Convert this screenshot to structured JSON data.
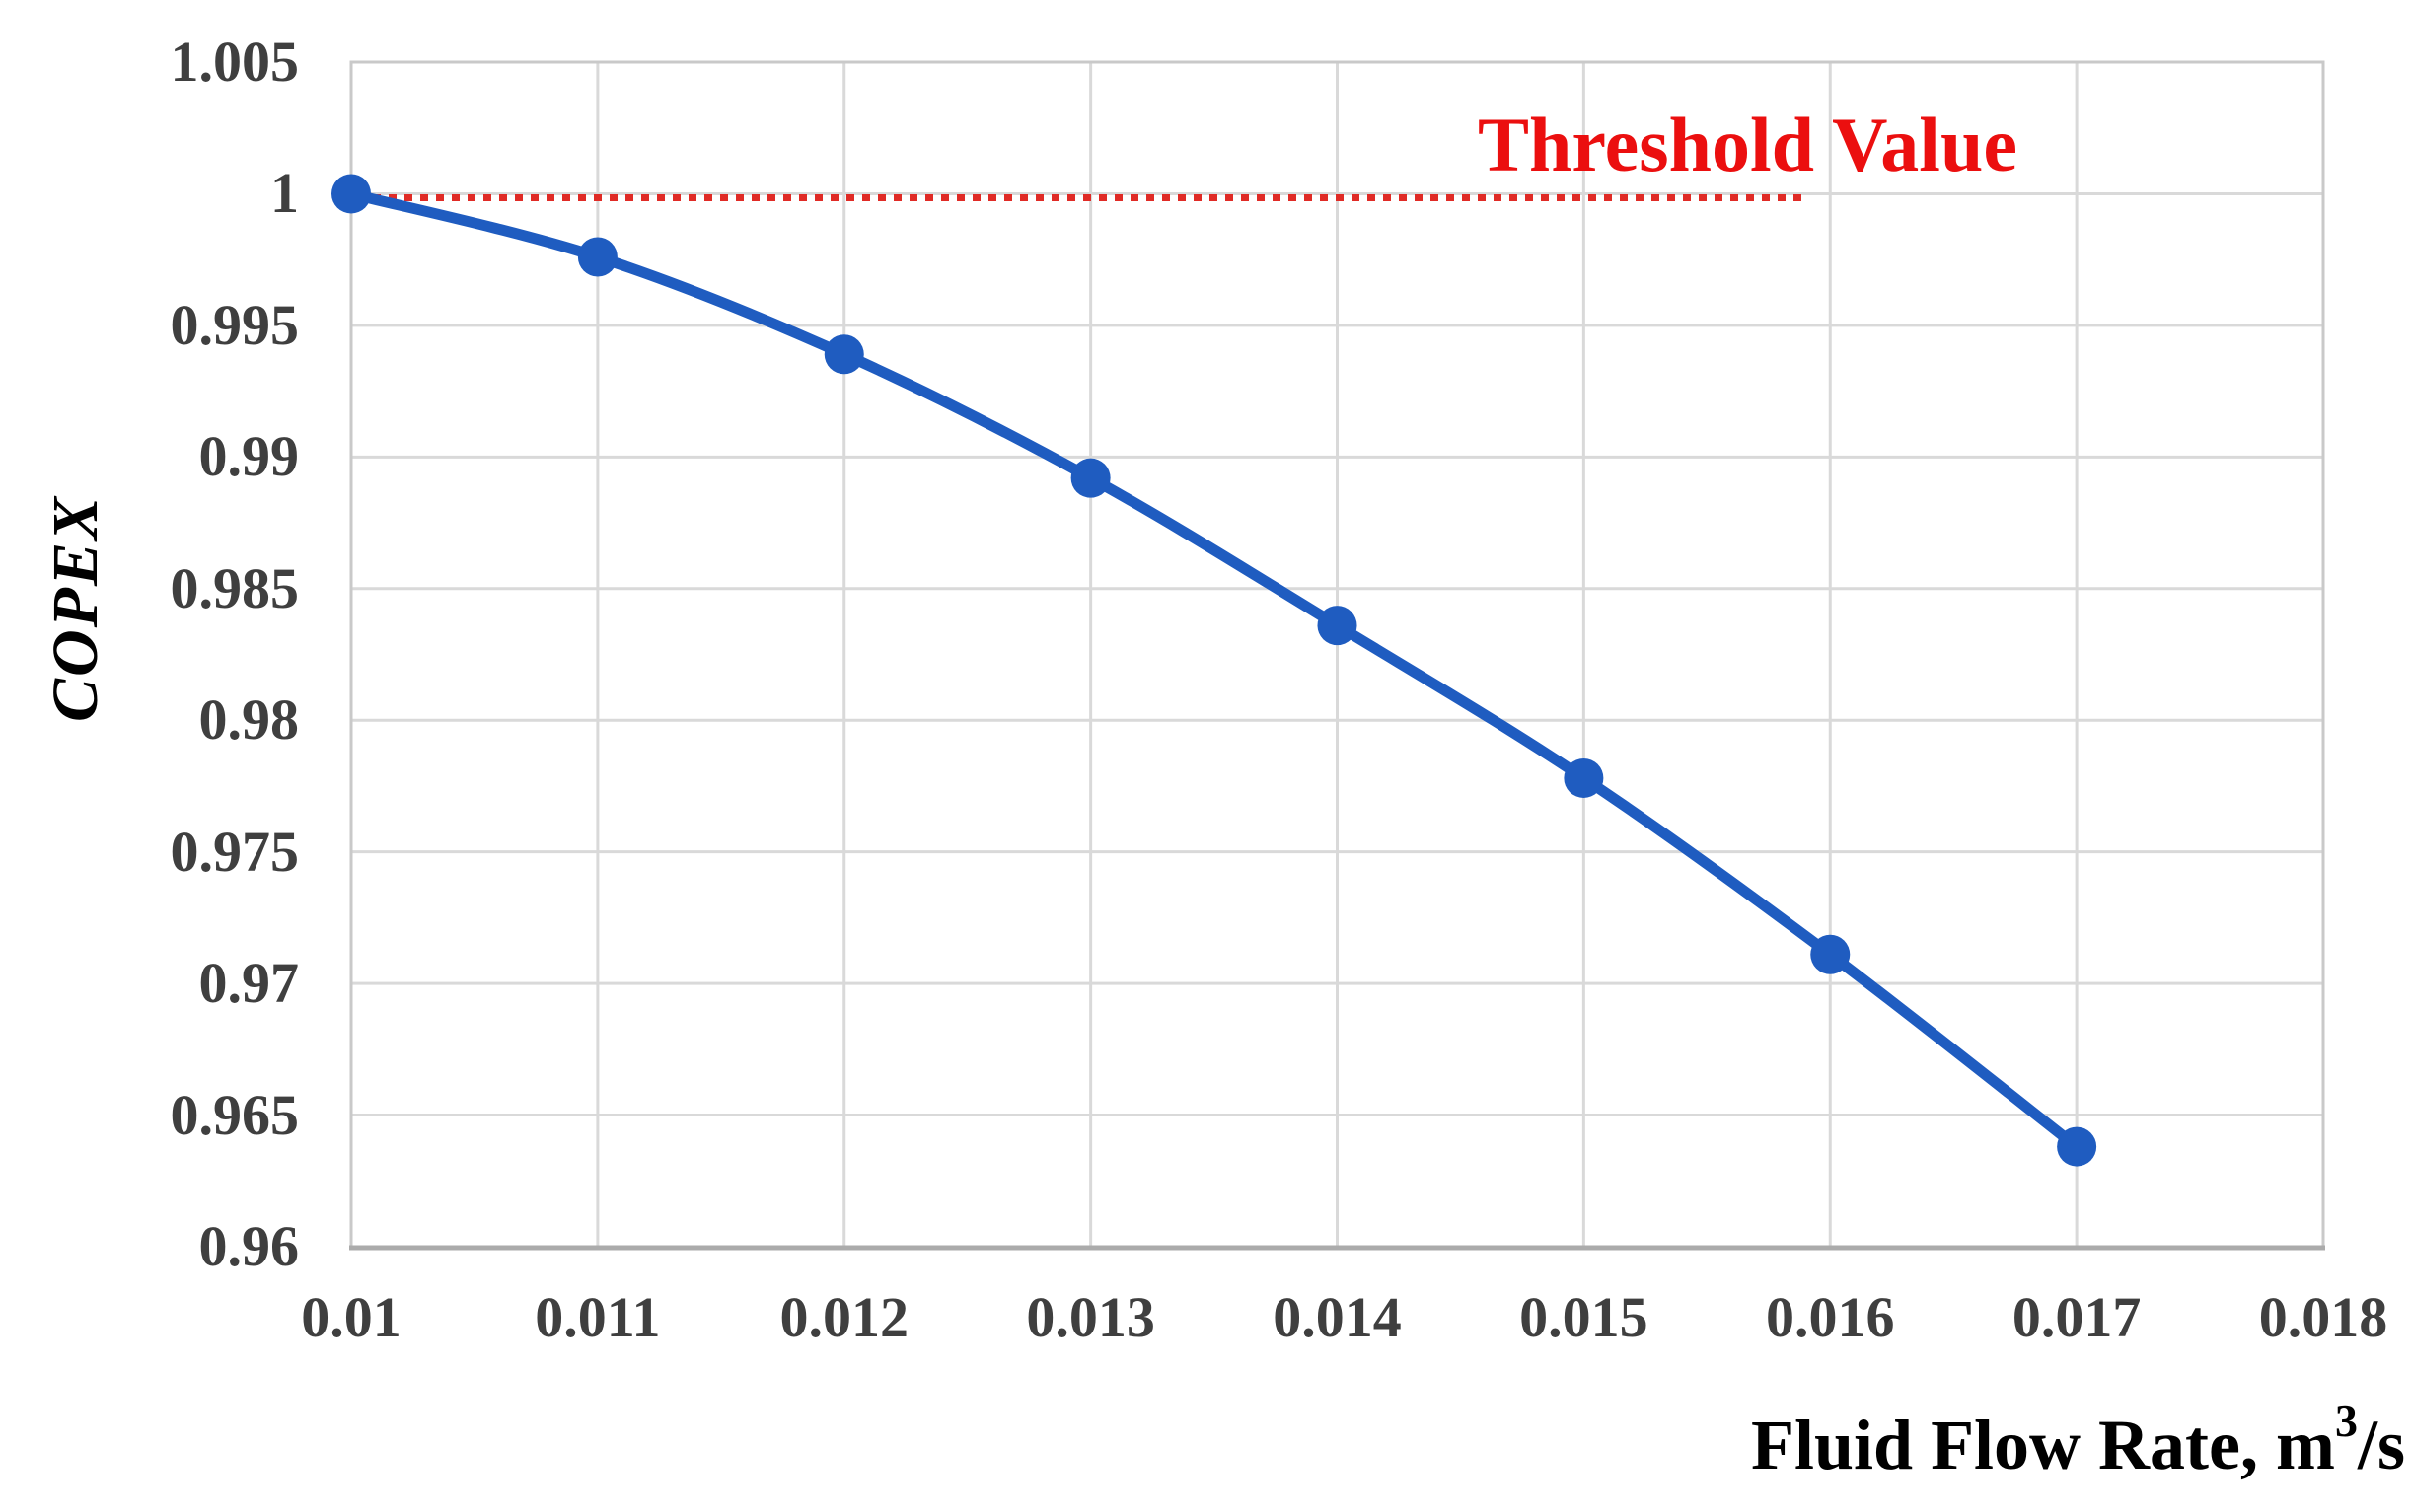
{
  "page": {
    "background": "#ffffff"
  },
  "chart_data": {
    "type": "line",
    "title": "",
    "xlabel": "Fluid Flow Rate, m³/s",
    "xlabel_parts": {
      "base": "Fluid Flow Rate, m",
      "sup": "3",
      "suffix": "/s"
    },
    "ylabel": "COPEX",
    "x": [
      0.01,
      0.011,
      0.012,
      0.013,
      0.014,
      0.015,
      0.016,
      0.017
    ],
    "series": [
      {
        "name": "COPEX",
        "values": [
          1.0,
          0.9976,
          0.9939,
          0.9892,
          0.9836,
          0.9778,
          0.9711,
          0.9638
        ],
        "color": "#1F5CC0",
        "marker": "circle",
        "smooth": true
      }
    ],
    "xlim": [
      0.01,
      0.018
    ],
    "ylim": [
      0.96,
      1.005
    ],
    "x_ticks": [
      "0.01",
      "0.011",
      "0.012",
      "0.013",
      "0.014",
      "0.015",
      "0.016",
      "0.017",
      "0.018"
    ],
    "y_ticks": [
      "1.005",
      "1",
      "0.995",
      "0.99",
      "0.985",
      "0.98",
      "0.975",
      "0.97",
      "0.965",
      "0.96"
    ],
    "grid": true,
    "legend": "none",
    "annotations": {
      "threshold": {
        "label": "Threshold Value",
        "value": 1.0,
        "x_start": 0.01,
        "x_end": 0.0159,
        "style": "dashed",
        "text_color": "#EB0F0F",
        "line_color": "#E02B26"
      }
    },
    "colors": {
      "gridline": "#D9D9D9",
      "plot_border": "#C9C9C9",
      "bottom_axis": "#ABABAB",
      "axis_text": "#3F3F3F",
      "title_text": "#000000"
    }
  }
}
